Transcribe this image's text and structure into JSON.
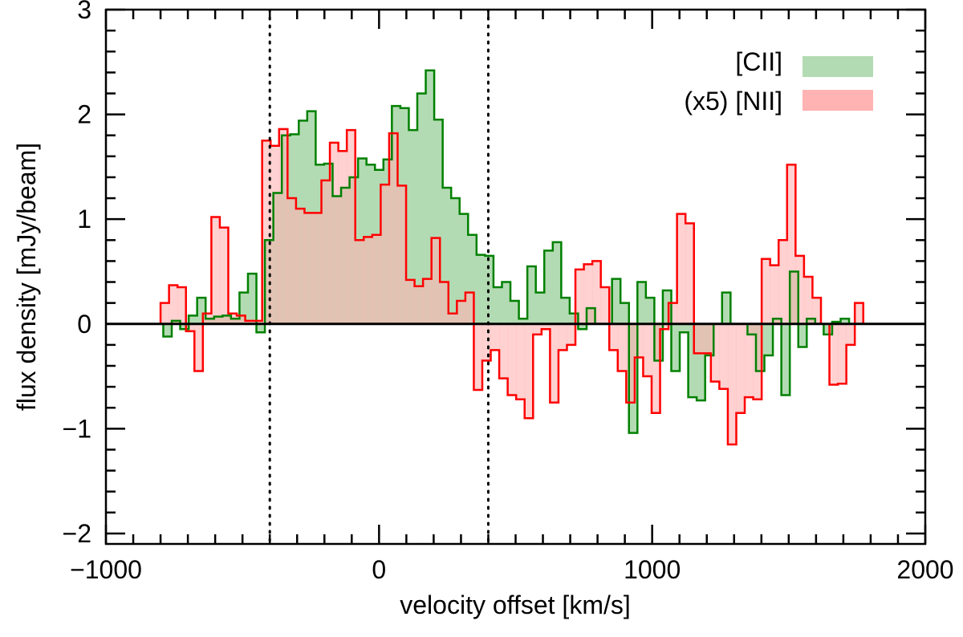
{
  "chart_data": {
    "type": "step-histogram",
    "title": "",
    "xlabel": "velocity offset [km/s]",
    "ylabel": "flux density [mJy/beam]",
    "xlim": [
      -1000,
      2000
    ],
    "ylim": [
      -2.1,
      3.0
    ],
    "xticks": [
      -1000,
      0,
      1000,
      2000
    ],
    "xtick_labels": [
      "−1000",
      "0",
      "1000",
      "2000"
    ],
    "yticks": [
      -2,
      -1,
      0,
      1,
      2,
      3
    ],
    "ytick_labels": [
      "−2",
      "−1",
      "0",
      "1",
      "2",
      "3"
    ],
    "x_minor_step": 100,
    "y_minor_step": 0.2,
    "vlines": [
      -400,
      400
    ],
    "legend": {
      "placement": "top-right",
      "entries": [
        {
          "label": "[CII]",
          "series": "cii"
        },
        {
          "label": "(x5) [NII]",
          "series": "nii"
        }
      ]
    },
    "series": [
      {
        "id": "cii",
        "name": "[CII]",
        "line_color": "#008000",
        "fill_color": "#b3dbb3",
        "x_start": -790,
        "bin_width": 31,
        "values": [
          -0.12,
          0.03,
          -0.05,
          0.08,
          0.25,
          0.05,
          0.07,
          0.08,
          0.05,
          0.3,
          0.48,
          -0.08,
          0.8,
          1.25,
          1.8,
          1.81,
          1.94,
          2.03,
          1.52,
          1.53,
          1.22,
          1.3,
          1.4,
          1.58,
          1.52,
          1.47,
          1.57,
          2.08,
          2.06,
          1.85,
          2.2,
          2.42,
          1.95,
          1.3,
          1.2,
          1.05,
          0.85,
          0.66,
          0.65,
          0.35,
          0.4,
          0.22,
          0.05,
          0.55,
          0.3,
          0.7,
          0.78,
          0.25,
          0.1,
          -0.05,
          0.15,
          0.0,
          0.0,
          0.43,
          0.2,
          -1.04,
          0.4,
          0.25,
          -0.35,
          0.32,
          -0.45,
          -0.08,
          -0.7,
          -0.73,
          -0.3,
          0.0,
          0.3,
          0.0,
          0.0,
          -0.1,
          -0.45,
          -0.3,
          0.05,
          -0.68,
          0.5,
          -0.22,
          0.05,
          0.0,
          -0.1,
          0.02,
          0.05,
          0.0
        ]
      },
      {
        "id": "nii",
        "name": "(x5) [NII]",
        "line_color": "#ff0000",
        "fill_color": "#ffb3b3",
        "x_start": -800,
        "bin_width": 31,
        "values": [
          0.2,
          0.37,
          0.35,
          -0.07,
          -0.45,
          0.1,
          1.02,
          0.92,
          0.1,
          0.08,
          0.03,
          0.03,
          1.75,
          1.7,
          1.86,
          1.2,
          1.1,
          1.06,
          1.06,
          1.37,
          1.73,
          1.65,
          1.85,
          0.8,
          0.83,
          0.85,
          1.33,
          1.82,
          1.32,
          0.42,
          0.36,
          0.43,
          0.82,
          0.4,
          0.1,
          0.22,
          0.3,
          -0.63,
          -0.35,
          -0.25,
          -0.52,
          -0.68,
          -0.72,
          -0.9,
          -0.1,
          -0.05,
          -0.75,
          -0.25,
          -0.2,
          0.52,
          0.57,
          0.6,
          0.35,
          -0.25,
          -0.45,
          -0.75,
          -0.32,
          -0.5,
          -0.85,
          -0.05,
          0.2,
          1.05,
          0.96,
          -0.28,
          -0.28,
          -0.55,
          -0.62,
          -1.15,
          -0.85,
          -0.7,
          -0.72,
          0.62,
          0.56,
          0.8,
          1.52,
          0.65,
          0.45,
          0.25,
          0.0,
          -0.58,
          -0.57,
          -0.2,
          0.2
        ]
      }
    ]
  }
}
